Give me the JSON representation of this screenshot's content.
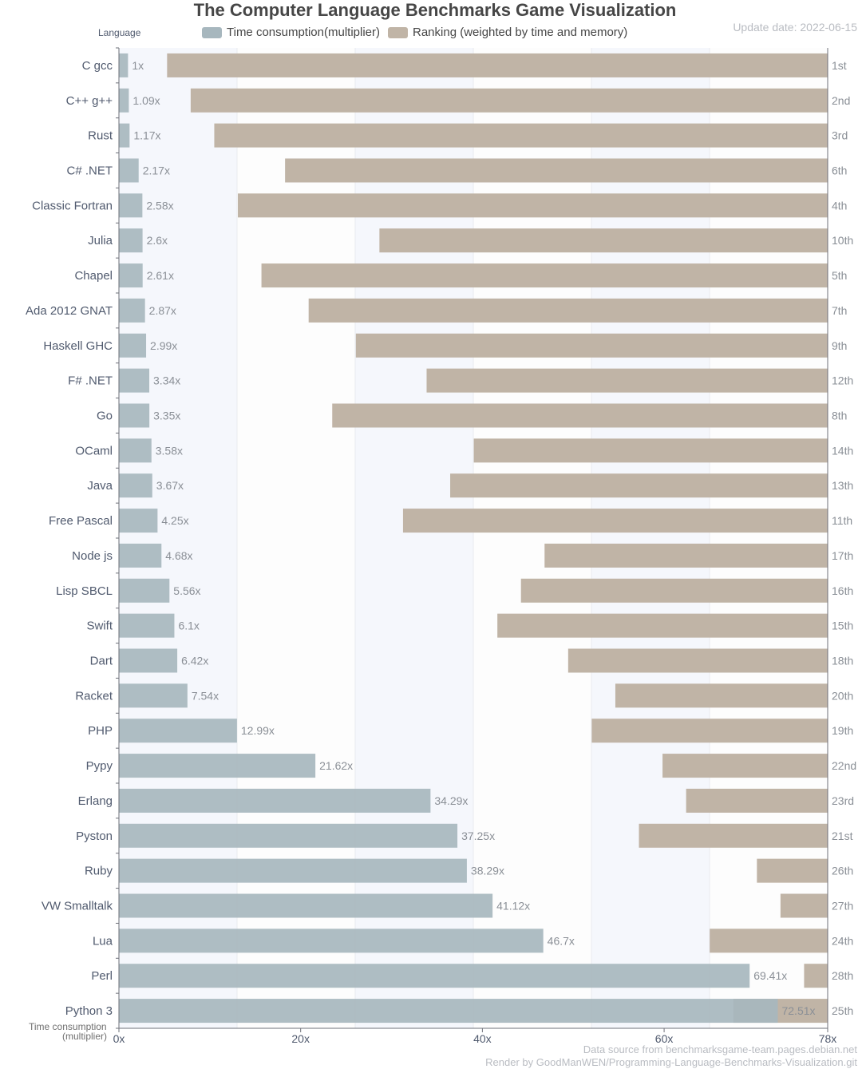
{
  "title": "The Computer Language Benchmarks Game Visualization",
  "update_date": "Update date: 2022-06-15",
  "y_axis_header": "Language",
  "x_axis_title_line1": "Time consumption",
  "x_axis_title_line2": "(multiplier)",
  "legend": [
    {
      "label": "Time consumption(multiplier)",
      "color": "#a7b7be"
    },
    {
      "label": "Ranking (weighted by time and memory)",
      "color": "#c0b4a6"
    }
  ],
  "footer": {
    "source": "Data source from benchmarksgame-team.pages.debian.net",
    "render": "Render by GoodManWEN/Programming-Language-Benchmarks-Visualization.git"
  },
  "chart_data": {
    "type": "bar",
    "orientation": "horizontal",
    "xlim": [
      0,
      78
    ],
    "x_ticks": [
      "0x",
      "20x",
      "40x",
      "60x",
      "78x"
    ],
    "x_tick_values": [
      0,
      20,
      40,
      60,
      78
    ],
    "categories": [
      "C gcc",
      "C++ g++",
      "Rust",
      "C# .NET",
      "Classic Fortran",
      "Julia",
      "Chapel",
      "Ada 2012 GNAT",
      "Haskell GHC",
      "F# .NET",
      "Go",
      "OCaml",
      "Java",
      "Free Pascal",
      "Node js",
      "Lisp SBCL",
      "Swift",
      "Dart",
      "Racket",
      "PHP",
      "Pypy",
      "Erlang",
      "Pyston",
      "Ruby",
      "VW Smalltalk",
      "Lua",
      "Perl",
      "Python 3"
    ],
    "series": [
      {
        "name": "Time consumption(multiplier)",
        "values": [
          1,
          1.09,
          1.17,
          2.17,
          2.58,
          2.6,
          2.61,
          2.87,
          2.99,
          3.34,
          3.35,
          3.58,
          3.67,
          4.25,
          4.68,
          5.56,
          6.1,
          6.42,
          7.54,
          12.99,
          21.62,
          34.29,
          37.25,
          38.29,
          41.12,
          46.7,
          69.41,
          72.51
        ],
        "value_labels": [
          "1x",
          "1.09x",
          "1.17x",
          "2.17x",
          "2.58x",
          "2.6x",
          "2.61x",
          "2.87x",
          "2.99x",
          "3.34x",
          "3.35x",
          "3.58x",
          "3.67x",
          "4.25x",
          "4.68x",
          "5.56x",
          "6.1x",
          "6.42x",
          "7.54x",
          "12.99x",
          "21.62x",
          "34.29x",
          "37.25x",
          "38.29x",
          "41.12x",
          "46.7x",
          "69.41x",
          "72.51x"
        ]
      },
      {
        "name": "Ranking (weighted by time and memory)",
        "values": [
          1,
          2,
          3,
          6,
          4,
          10,
          5,
          7,
          9,
          12,
          8,
          14,
          13,
          11,
          17,
          16,
          15,
          18,
          20,
          19,
          22,
          23,
          21,
          26,
          27,
          24,
          28,
          25
        ],
        "value_labels": [
          "1st",
          "2nd",
          "3rd",
          "6th",
          "4th",
          "10th",
          "5th",
          "7th",
          "9th",
          "12th",
          "8th",
          "14th",
          "13th",
          "11th",
          "17th",
          "16th",
          "15th",
          "18th",
          "20th",
          "19th",
          "22nd",
          "23rd",
          "21st",
          "26th",
          "27th",
          "24th",
          "28th",
          "25th"
        ]
      }
    ],
    "grid": "vertical bands",
    "legend_position": "top"
  }
}
